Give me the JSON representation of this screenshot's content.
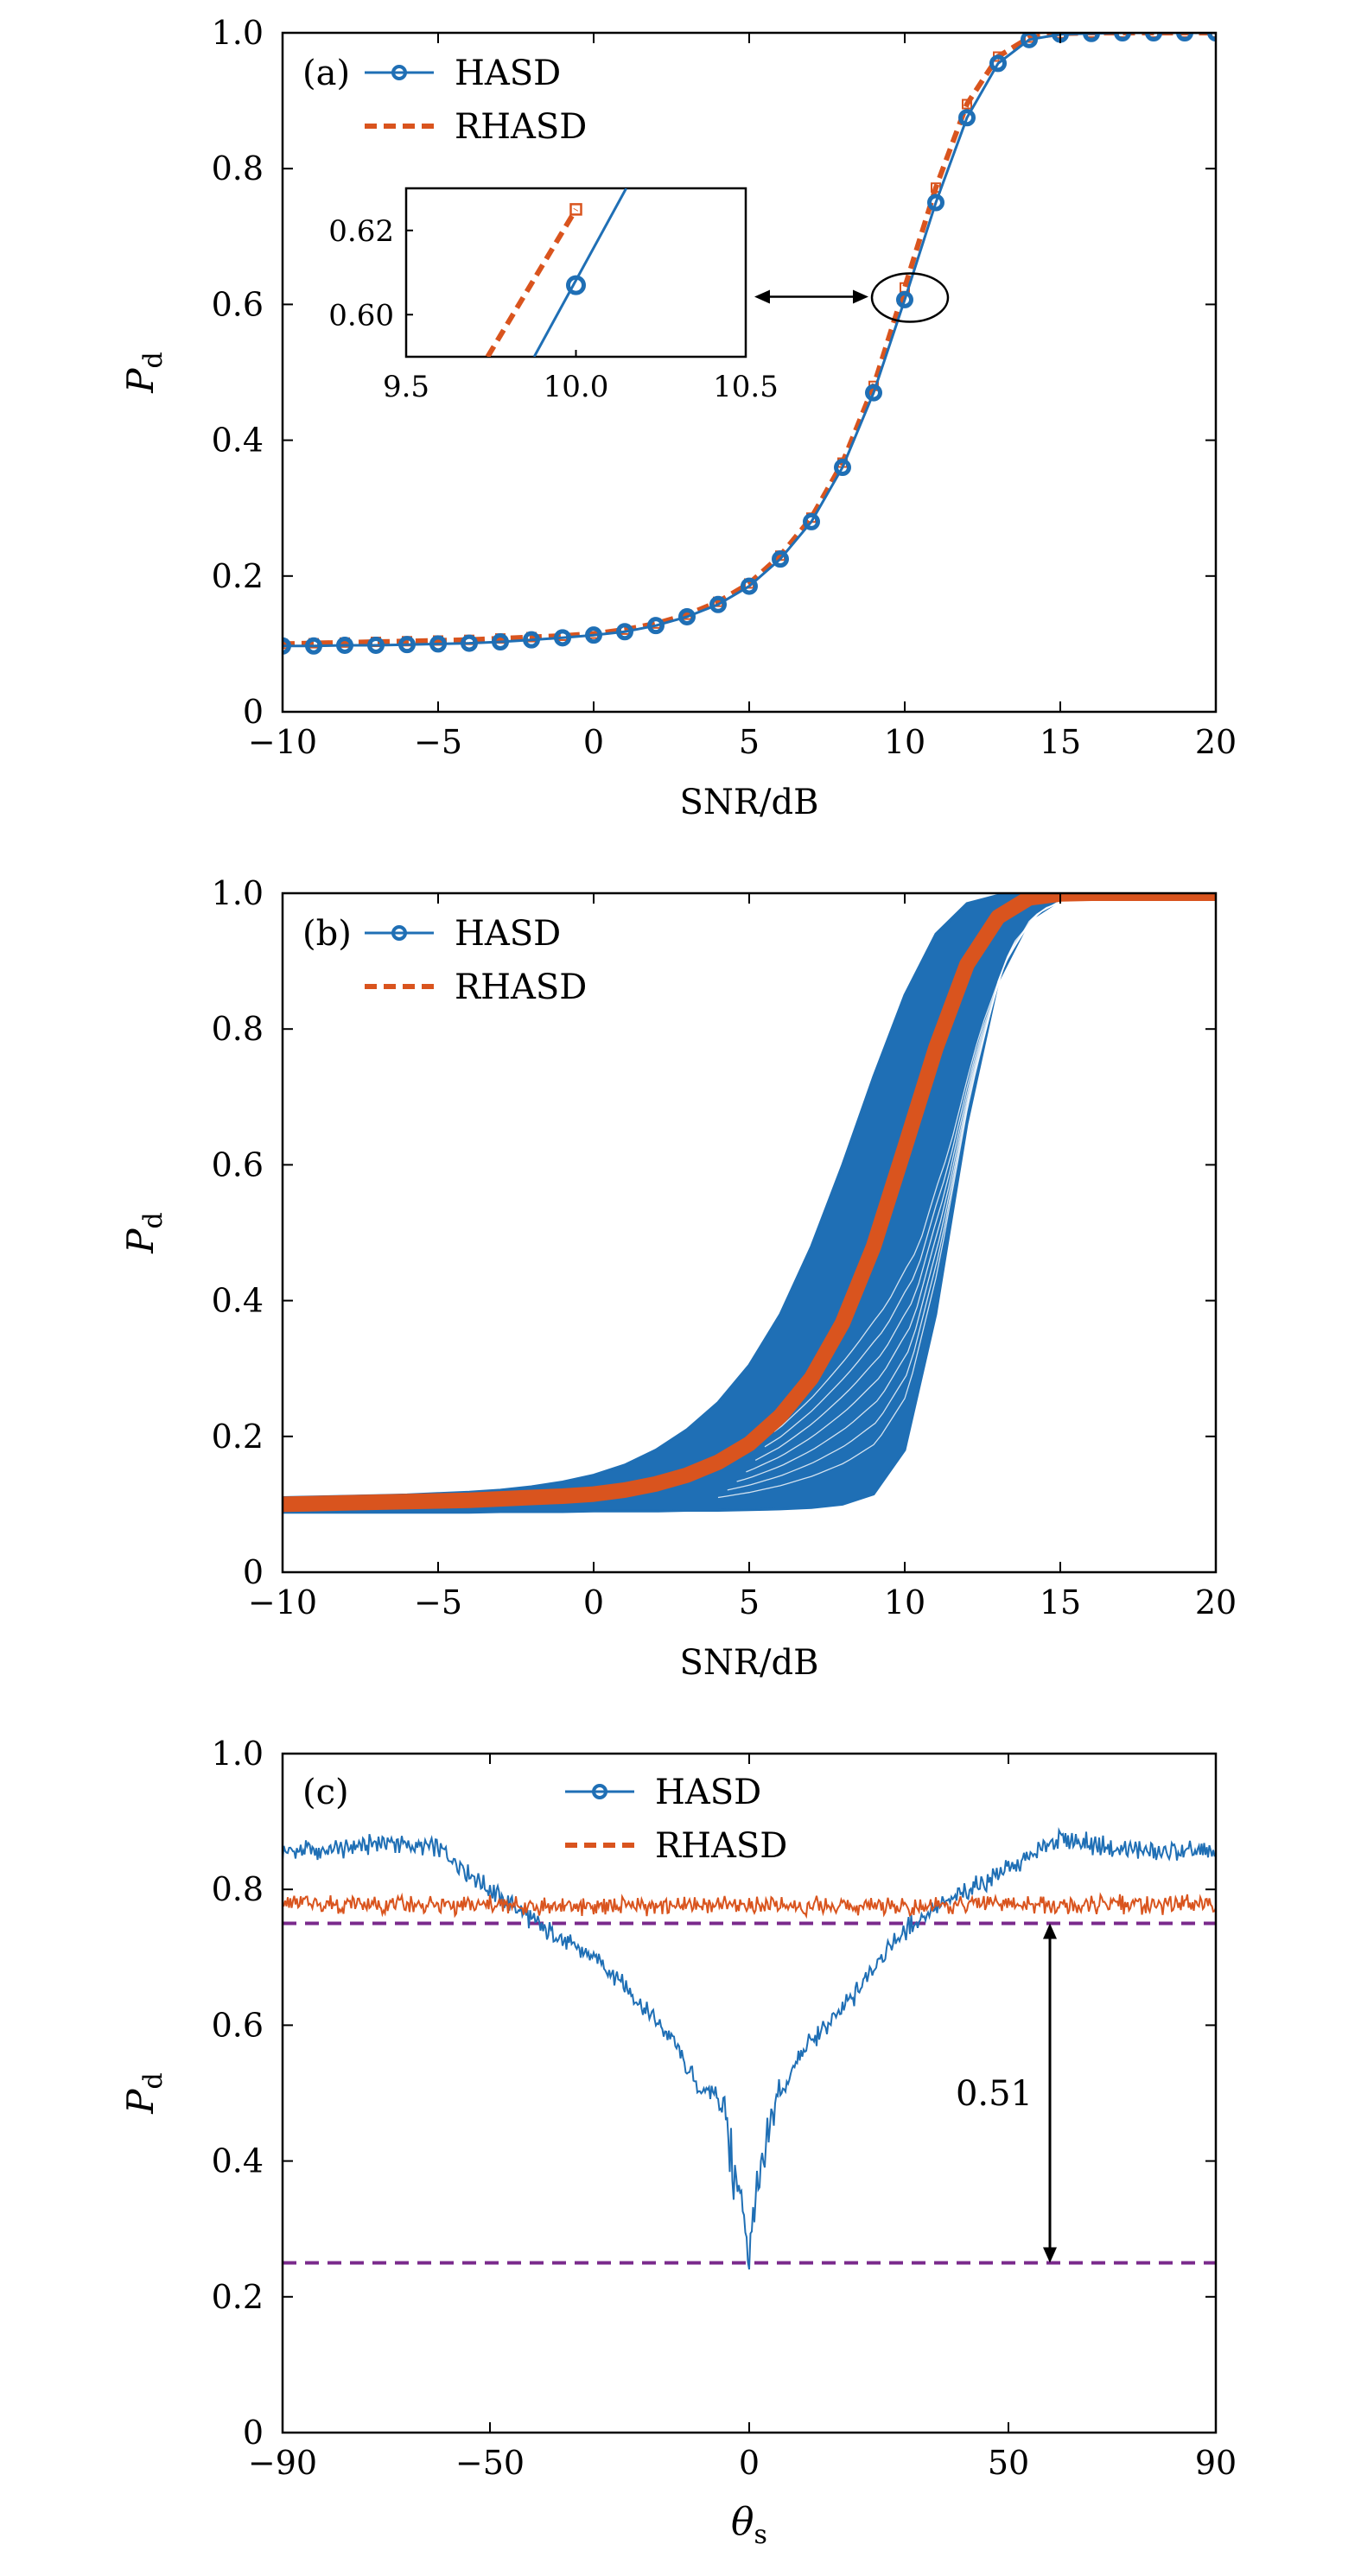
{
  "colors": {
    "hasd": "#1f6fb5",
    "rhasd": "#d9541e",
    "threshold": "#7a2a8c",
    "axis": "#000000"
  },
  "chart_data": [
    {
      "panel": "(a)",
      "type": "line",
      "xlabel": "SNR/dB",
      "ylabel_main": "P",
      "ylabel_sub": "d",
      "xlim": [
        -10,
        20
      ],
      "ylim": [
        0,
        1
      ],
      "xticks": [
        -10,
        -5,
        0,
        5,
        10,
        15,
        20
      ],
      "xtick_labels": [
        "−10",
        "−5",
        "0",
        "5",
        "10",
        "15",
        "20"
      ],
      "yticks": [
        0,
        0.2,
        0.4,
        0.6,
        0.8,
        1.0
      ],
      "ytick_labels": [
        "0",
        "0.2",
        "0.4",
        "0.6",
        "0.8",
        "1.0"
      ],
      "legend": [
        "HASD",
        "RHASD"
      ],
      "legend_position": "top-left",
      "x": [
        -10,
        -9,
        -8,
        -7,
        -6,
        -5,
        -4,
        -3,
        -2,
        -1,
        0,
        1,
        2,
        3,
        4,
        5,
        6,
        7,
        8,
        9,
        10,
        11,
        12,
        13,
        14,
        15,
        16,
        17,
        18,
        19,
        20
      ],
      "series": [
        {
          "name": "HASD",
          "values": [
            0.097,
            0.097,
            0.098,
            0.098,
            0.099,
            0.1,
            0.101,
            0.103,
            0.106,
            0.109,
            0.113,
            0.118,
            0.127,
            0.14,
            0.158,
            0.185,
            0.225,
            0.28,
            0.36,
            0.47,
            0.607,
            0.75,
            0.875,
            0.955,
            0.99,
            0.998,
            0.999,
            1.0,
            1.0,
            1.0,
            1.0
          ]
        },
        {
          "name": "RHASD",
          "values": [
            0.1,
            0.101,
            0.102,
            0.103,
            0.104,
            0.105,
            0.106,
            0.108,
            0.11,
            0.112,
            0.115,
            0.121,
            0.13,
            0.143,
            0.162,
            0.189,
            0.23,
            0.286,
            0.367,
            0.48,
            0.625,
            0.772,
            0.895,
            0.965,
            0.993,
            0.999,
            1.0,
            1.0,
            1.0,
            1.0,
            1.0
          ]
        }
      ],
      "inset": {
        "xlim": [
          9.5,
          10.5
        ],
        "ylim": [
          0.59,
          0.63
        ],
        "xticks": [
          9.5,
          10.0,
          10.5
        ],
        "xtick_labels": [
          "9.5",
          "10.0",
          "10.5"
        ],
        "yticks": [
          0.6,
          0.62
        ],
        "ytick_labels": [
          "0.60",
          "0.62"
        ],
        "hasd_segment": [
          [
            9.877,
            0.59
          ],
          [
            10.148,
            0.63
          ]
        ],
        "rhasd_segment": [
          [
            9.74,
            0.59
          ],
          [
            10.0,
            0.625
          ]
        ],
        "hasd_marker": [
          10.0,
          0.607
        ],
        "rhasd_marker": [
          10.0,
          0.625
        ]
      }
    },
    {
      "panel": "(b)",
      "type": "line",
      "xlabel": "SNR/dB",
      "ylabel_main": "P",
      "ylabel_sub": "d",
      "xlim": [
        -10,
        20
      ],
      "ylim": [
        0,
        1
      ],
      "xticks": [
        -10,
        -5,
        0,
        5,
        10,
        15,
        20
      ],
      "xtick_labels": [
        "−10",
        "−5",
        "0",
        "5",
        "10",
        "15",
        "20"
      ],
      "yticks": [
        0,
        0.2,
        0.4,
        0.6,
        0.8,
        1.0
      ],
      "ytick_labels": [
        "0",
        "0.2",
        "0.4",
        "0.6",
        "0.8",
        "1.0"
      ],
      "legend": [
        "HASD",
        "RHASD"
      ],
      "legend_position": "top-left",
      "x": [
        -10,
        -9,
        -8,
        -7,
        -6,
        -5,
        -4,
        -3,
        -2,
        -1,
        0,
        1,
        2,
        3,
        4,
        5,
        6,
        7,
        8,
        9,
        10,
        11,
        12,
        13,
        14,
        15,
        16,
        17,
        18,
        19,
        20
      ],
      "hasd_band_upper": [
        0.11,
        0.111,
        0.112,
        0.113,
        0.114,
        0.116,
        0.118,
        0.121,
        0.126,
        0.133,
        0.143,
        0.158,
        0.18,
        0.21,
        0.25,
        0.305,
        0.38,
        0.48,
        0.6,
        0.73,
        0.85,
        0.94,
        0.985,
        0.997,
        1.0,
        1.0,
        1.0,
        1.0,
        1.0,
        1.0,
        1.0
      ],
      "hasd_band_lower": [
        0.088,
        0.088,
        0.088,
        0.088,
        0.088,
        0.088,
        0.088,
        0.089,
        0.089,
        0.089,
        0.09,
        0.09,
        0.09,
        0.091,
        0.091,
        0.092,
        0.093,
        0.095,
        0.1,
        0.115,
        0.18,
        0.38,
        0.66,
        0.87,
        0.96,
        0.99,
        0.998,
        1.0,
        1.0,
        1.0,
        1.0
      ],
      "rhasd_mean": [
        0.1,
        0.101,
        0.102,
        0.103,
        0.104,
        0.105,
        0.106,
        0.108,
        0.11,
        0.112,
        0.115,
        0.121,
        0.13,
        0.143,
        0.162,
        0.189,
        0.23,
        0.286,
        0.367,
        0.48,
        0.625,
        0.772,
        0.895,
        0.965,
        0.993,
        0.999,
        1.0,
        1.0,
        1.0,
        1.0,
        1.0
      ]
    },
    {
      "panel": "(c)",
      "type": "line",
      "xlabel_main": "θ",
      "xlabel_sub": "s",
      "ylabel_main": "P",
      "ylabel_sub": "d",
      "xlim": [
        -90,
        90
      ],
      "ylim": [
        0,
        1
      ],
      "xticks": [
        -90,
        -50,
        0,
        50,
        90
      ],
      "xtick_labels": [
        "−90",
        "−50",
        "0",
        "50",
        "90"
      ],
      "yticks": [
        0,
        0.2,
        0.4,
        0.6,
        0.8,
        1.0
      ],
      "ytick_labels": [
        "0",
        "0.2",
        "0.4",
        "0.6",
        "0.8",
        "1.0"
      ],
      "legend": [
        "HASD",
        "RHASD"
      ],
      "legend_position": "top-center",
      "x": [
        -90,
        -80,
        -70,
        -60,
        -50,
        -40,
        -35,
        -30,
        -25,
        -20,
        -15,
        -10,
        -7,
        -5,
        -3,
        -1,
        0,
        1,
        3,
        5,
        7,
        10,
        15,
        20,
        25,
        30,
        35,
        40,
        50,
        60,
        70,
        80,
        90
      ],
      "series": [
        {
          "name": "HASD",
          "values": [
            0.855,
            0.858,
            0.87,
            0.86,
            0.8,
            0.745,
            0.72,
            0.7,
            0.67,
            0.62,
            0.58,
            0.51,
            0.5,
            0.49,
            0.38,
            0.33,
            0.26,
            0.33,
            0.4,
            0.49,
            0.51,
            0.56,
            0.6,
            0.64,
            0.7,
            0.74,
            0.77,
            0.79,
            0.83,
            0.875,
            0.86,
            0.856,
            0.855
          ]
        },
        {
          "name": "RHASD",
          "values": [
            0.78,
            0.778,
            0.778,
            0.777,
            0.776,
            0.776,
            0.776,
            0.776,
            0.776,
            0.776,
            0.776,
            0.776,
            0.776,
            0.776,
            0.776,
            0.776,
            0.776,
            0.776,
            0.776,
            0.776,
            0.776,
            0.776,
            0.776,
            0.776,
            0.776,
            0.776,
            0.776,
            0.776,
            0.776,
            0.776,
            0.777,
            0.778,
            0.78
          ]
        }
      ],
      "thresholds": [
        0.75,
        0.25
      ],
      "annotation": {
        "text": "0.51",
        "x": 58,
        "y_from": 0.25,
        "y_to": 0.75
      }
    }
  ]
}
